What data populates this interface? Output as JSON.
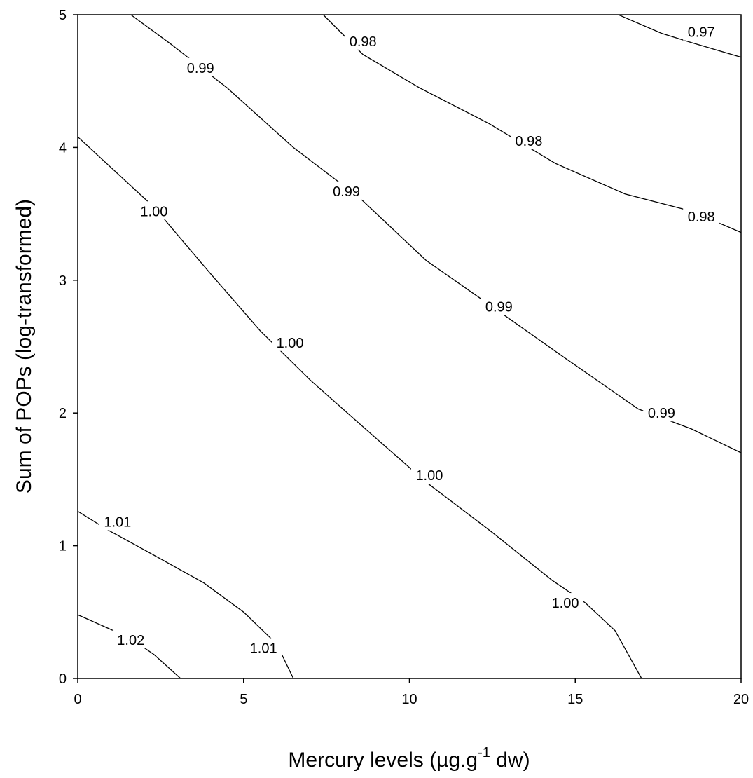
{
  "chart_data": {
    "type": "contour",
    "xlabel": "Mercury levels (µg.g",
    "xlabel_sup": "-1",
    "xlabel_tail": " dw)",
    "ylabel": "Sum of POPs (log-transformed)",
    "xlim": [
      0,
      20
    ],
    "ylim": [
      0,
      5
    ],
    "xticks": [
      0,
      5,
      10,
      15,
      20
    ],
    "yticks": [
      0,
      1,
      2,
      3,
      4,
      5
    ],
    "grid": false,
    "contours": [
      {
        "level": "1.02",
        "points": [
          [
            0,
            0.48
          ],
          [
            0.9,
            0.38
          ],
          [
            1.6,
            0.3
          ],
          [
            2.3,
            0.18
          ],
          [
            3.1,
            0.0
          ]
        ],
        "labels": [
          {
            "x": 1.6,
            "y": 0.29
          }
        ]
      },
      {
        "level": "1.01",
        "points": [
          [
            0,
            1.26
          ],
          [
            0.9,
            1.12
          ],
          [
            2.0,
            0.97
          ],
          [
            3.8,
            0.72
          ],
          [
            5.0,
            0.5
          ],
          [
            6.0,
            0.26
          ],
          [
            6.5,
            0.0
          ]
        ],
        "labels": [
          {
            "x": 1.2,
            "y": 1.18
          },
          {
            "x": 5.6,
            "y": 0.23
          }
        ]
      },
      {
        "level": "1.00",
        "points": [
          [
            0,
            4.08
          ],
          [
            1.0,
            3.85
          ],
          [
            2.3,
            3.55
          ],
          [
            4.0,
            3.05
          ],
          [
            5.5,
            2.62
          ],
          [
            7.0,
            2.25
          ],
          [
            8.9,
            1.83
          ],
          [
            10.5,
            1.48
          ],
          [
            12.5,
            1.1
          ],
          [
            14.3,
            0.74
          ],
          [
            15.3,
            0.57
          ],
          [
            16.2,
            0.36
          ],
          [
            17.0,
            0.0
          ]
        ],
        "labels": [
          {
            "x": 2.3,
            "y": 3.52
          },
          {
            "x": 6.4,
            "y": 2.53
          },
          {
            "x": 10.6,
            "y": 1.53
          },
          {
            "x": 14.7,
            "y": 0.57
          }
        ]
      },
      {
        "level": "0.99",
        "points": [
          [
            1.6,
            5.0
          ],
          [
            2.8,
            4.78
          ],
          [
            4.5,
            4.45
          ],
          [
            6.5,
            4.0
          ],
          [
            8.5,
            3.62
          ],
          [
            10.5,
            3.15
          ],
          [
            12.5,
            2.8
          ],
          [
            14.6,
            2.43
          ],
          [
            16.9,
            2.03
          ],
          [
            18.5,
            1.88
          ],
          [
            20,
            1.7
          ]
        ],
        "labels": [
          {
            "x": 3.7,
            "y": 4.6
          },
          {
            "x": 8.1,
            "y": 3.67
          },
          {
            "x": 12.7,
            "y": 2.8
          },
          {
            "x": 17.6,
            "y": 2.0
          }
        ]
      },
      {
        "level": "0.98",
        "points": [
          [
            7.4,
            5.0
          ],
          [
            8.6,
            4.7
          ],
          [
            10.3,
            4.45
          ],
          [
            12.4,
            4.18
          ],
          [
            14.4,
            3.88
          ],
          [
            16.5,
            3.65
          ],
          [
            18.5,
            3.52
          ],
          [
            20,
            3.36
          ]
        ],
        "labels": [
          {
            "x": 8.6,
            "y": 4.8
          },
          {
            "x": 13.6,
            "y": 4.05
          },
          {
            "x": 18.8,
            "y": 3.48
          }
        ]
      },
      {
        "level": "0.97",
        "points": [
          [
            16.3,
            5.0
          ],
          [
            17.6,
            4.86
          ],
          [
            18.5,
            4.79
          ],
          [
            20,
            4.68
          ]
        ],
        "labels": [
          {
            "x": 18.8,
            "y": 4.87
          }
        ]
      }
    ]
  }
}
